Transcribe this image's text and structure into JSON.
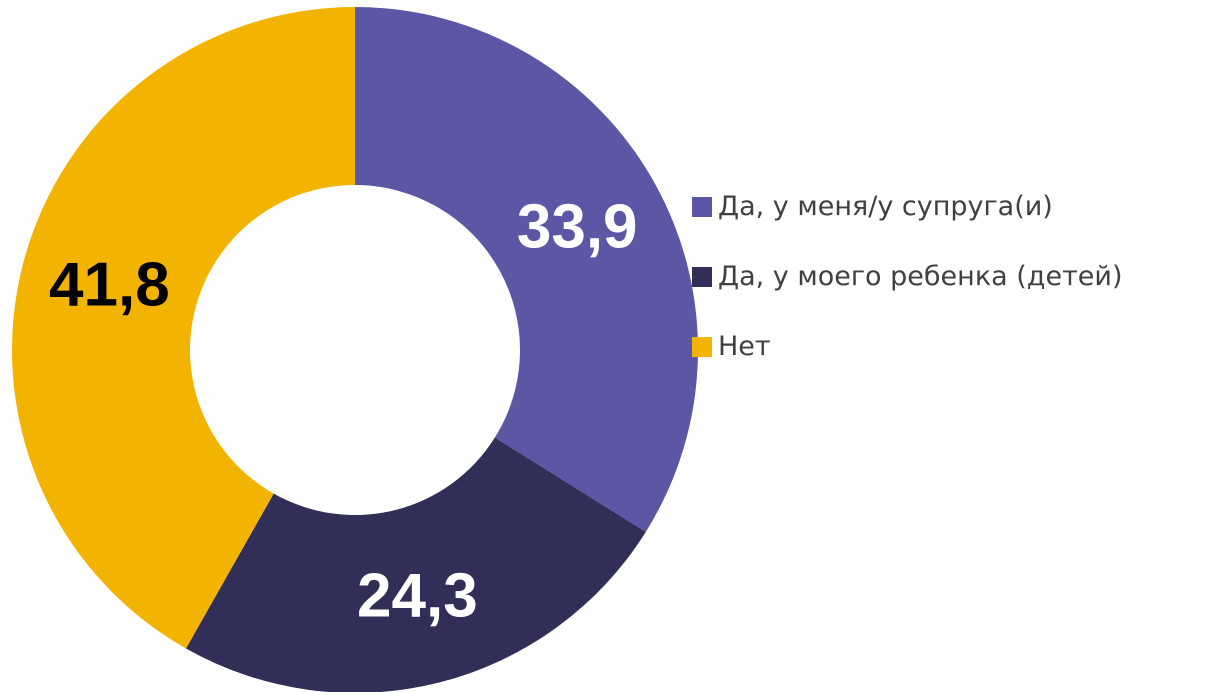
{
  "chart_data": {
    "type": "donut",
    "categories": [
      "Да, у меня/у супруга(и)",
      "Да, у моего ребенка (детей)",
      "Нет"
    ],
    "values": [
      33.9,
      24.3,
      41.8
    ],
    "value_labels": [
      "33,9",
      "24,3",
      "41,8"
    ],
    "colors": [
      "#5b57a5",
      "#312e57",
      "#f2b400"
    ],
    "label_colors": [
      "#ffffff",
      "#ffffff",
      "#000000"
    ],
    "legend": "right"
  }
}
